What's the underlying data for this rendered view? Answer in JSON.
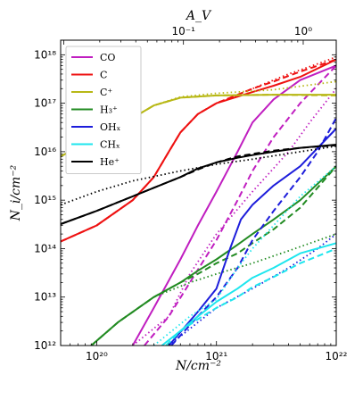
{
  "chart_data": {
    "type": "line",
    "xscale": "log",
    "yscale": "log",
    "xlim": [
      5e+19,
      1e+22
    ],
    "ylim": [
      1000000000000.0,
      2e+18
    ],
    "xlabel": "N/cm⁻²",
    "ylabel": "N_i/cm⁻²",
    "top_axis": {
      "label": "A_V",
      "ticks": [
        {
          "text": "10⁻¹",
          "x": 5.3e+20
        },
        {
          "text": "10⁰",
          "x": 5.3e+21
        }
      ]
    },
    "x_ticks": [
      {
        "text": "10²⁰",
        "v": 1e+20
      },
      {
        "text": "10²¹",
        "v": 1e+21
      },
      {
        "text": "10²²",
        "v": 1e+22
      }
    ],
    "y_ticks": [
      {
        "text": "10¹²",
        "v": 1000000000000.0
      },
      {
        "text": "10¹³",
        "v": 10000000000000.0
      },
      {
        "text": "10¹⁴",
        "v": 100000000000000.0
      },
      {
        "text": "10¹⁵",
        "v": 1000000000000000.0
      },
      {
        "text": "10¹⁶",
        "v": 1e+16
      },
      {
        "text": "10¹⁷",
        "v": 1e+17
      },
      {
        "text": "10¹⁸",
        "v": 1e+18
      }
    ],
    "legend_position": "upper-left",
    "series": [
      {
        "name": "CO",
        "color": "#c01ec0",
        "solid": [
          [
            2e+20,
            1000000000000.0
          ],
          [
            3e+20,
            6000000000000.0
          ],
          [
            5e+20,
            60000000000000.0
          ],
          [
            7e+20,
            300000000000000.0
          ],
          [
            1e+21,
            1500000000000000.0
          ],
          [
            1.5e+21,
            1e+16
          ],
          [
            2e+21,
            4e+16
          ],
          [
            3e+21,
            1.2e+17
          ],
          [
            5e+21,
            3e+17
          ],
          [
            1e+22,
            6e+17
          ]
        ],
        "dashed": [
          [
            2.5e+20,
            1000000000000.0
          ],
          [
            4e+20,
            4000000000000.0
          ],
          [
            6e+20,
            20000000000000.0
          ],
          [
            1e+21,
            150000000000000.0
          ],
          [
            1.5e+21,
            1000000000000000.0
          ],
          [
            2e+21,
            4000000000000000.0
          ],
          [
            3e+21,
            2e+16
          ],
          [
            5e+21,
            1e+17
          ],
          [
            1e+22,
            6e+17
          ]
        ],
        "dotted": [
          [
            2e+20,
            1000000000000.0
          ],
          [
            4e+20,
            4000000000000.0
          ],
          [
            6e+20,
            30000000000000.0
          ],
          [
            1e+21,
            200000000000000.0
          ],
          [
            2e+21,
            1500000000000000.0
          ],
          [
            4e+21,
            1e+16
          ],
          [
            6e+21,
            4e+16
          ],
          [
            1e+22,
            2e+17
          ]
        ]
      },
      {
        "name": "C",
        "color": "#ee1111",
        "solid": [
          [
            5e+19,
            140000000000000.0
          ],
          [
            1e+20,
            300000000000000.0
          ],
          [
            2e+20,
            1000000000000000.0
          ],
          [
            3e+20,
            3000000000000000.0
          ],
          [
            4e+20,
            1e+16
          ],
          [
            5e+20,
            2.5e+16
          ],
          [
            7e+20,
            6e+16
          ],
          [
            1e+21,
            1e+17
          ],
          [
            2e+21,
            1.7e+17
          ],
          [
            3e+21,
            2.3e+17
          ],
          [
            5e+21,
            3.5e+17
          ],
          [
            1e+22,
            8e+17
          ]
        ],
        "dashed": [
          [
            5e+19,
            140000000000000.0
          ],
          [
            1e+20,
            300000000000000.0
          ],
          [
            2e+20,
            1000000000000000.0
          ],
          [
            3e+20,
            3000000000000000.0
          ],
          [
            4e+20,
            1e+16
          ],
          [
            5e+20,
            2.5e+16
          ],
          [
            7e+20,
            6e+16
          ],
          [
            1e+21,
            1e+17
          ],
          [
            2e+21,
            2e+17
          ],
          [
            3e+21,
            2.8e+17
          ],
          [
            5e+21,
            4.5e+17
          ],
          [
            1e+22,
            8e+17
          ]
        ],
        "dotted": [
          [
            5e+19,
            140000000000000.0
          ],
          [
            1e+20,
            300000000000000.0
          ],
          [
            2e+20,
            1000000000000000.0
          ],
          [
            3e+20,
            3000000000000000.0
          ],
          [
            4e+20,
            1e+16
          ],
          [
            5e+20,
            2.5e+16
          ],
          [
            7e+20,
            6e+16
          ],
          [
            1e+21,
            1e+17
          ],
          [
            2e+21,
            2e+17
          ],
          [
            4e+21,
            4e+17
          ],
          [
            7e+21,
            6.5e+17
          ],
          [
            1e+22,
            9e+17
          ]
        ]
      },
      {
        "name": "C⁺",
        "color": "#b8b816",
        "solid": [
          [
            5e+19,
            8000000000000000.0
          ],
          [
            1e+20,
            2e+16
          ],
          [
            2e+20,
            5e+16
          ],
          [
            3e+20,
            9e+16
          ],
          [
            5e+20,
            1.3e+17
          ],
          [
            1e+21,
            1.45e+17
          ],
          [
            3e+21,
            1.5e+17
          ],
          [
            1e+22,
            1.5e+17
          ]
        ],
        "dashed": [
          [
            5e+19,
            8000000000000000.0
          ],
          [
            1e+20,
            2e+16
          ],
          [
            2e+20,
            5e+16
          ],
          [
            3e+20,
            9e+16
          ],
          [
            5e+20,
            1.3e+17
          ],
          [
            1e+21,
            1.45e+17
          ],
          [
            3e+21,
            1.5e+17
          ],
          [
            1e+22,
            1.45e+17
          ]
        ],
        "dotted": [
          [
            5e+19,
            8000000000000000.0
          ],
          [
            1e+20,
            2e+16
          ],
          [
            2e+20,
            5e+16
          ],
          [
            3e+20,
            9e+16
          ],
          [
            5e+20,
            1.35e+17
          ],
          [
            1e+21,
            1.6e+17
          ],
          [
            3e+21,
            1.9e+17
          ],
          [
            1e+22,
            2.8e+17
          ]
        ]
      },
      {
        "name": "H₃⁺",
        "color": "#228b22",
        "solid": [
          [
            9e+19,
            1000000000000.0
          ],
          [
            1.5e+20,
            3000000000000.0
          ],
          [
            3e+20,
            10000000000000.0
          ],
          [
            5e+20,
            20000000000000.0
          ],
          [
            7e+20,
            35000000000000.0
          ],
          [
            1e+21,
            60000000000000.0
          ],
          [
            1.5e+21,
            120000000000000.0
          ],
          [
            2e+21,
            200000000000000.0
          ],
          [
            3e+21,
            400000000000000.0
          ],
          [
            5e+21,
            1000000000000000.0
          ],
          [
            1e+22,
            5000000000000000.0
          ]
        ],
        "dashed": [
          [
            9e+19,
            1000000000000.0
          ],
          [
            1.5e+20,
            3000000000000.0
          ],
          [
            3e+20,
            10000000000000.0
          ],
          [
            5e+20,
            20000000000000.0
          ],
          [
            7e+20,
            30000000000000.0
          ],
          [
            1e+21,
            50000000000000.0
          ],
          [
            1.5e+21,
            80000000000000.0
          ],
          [
            2e+21,
            130000000000000.0
          ],
          [
            3e+21,
            250000000000000.0
          ],
          [
            5e+21,
            700000000000000.0
          ],
          [
            1e+22,
            5000000000000000.0
          ]
        ],
        "dotted": [
          [
            9e+19,
            1000000000000.0
          ],
          [
            1.5e+20,
            3000000000000.0
          ],
          [
            3e+20,
            10000000000000.0
          ],
          [
            6e+20,
            20000000000000.0
          ],
          [
            1e+21,
            30000000000000.0
          ],
          [
            2e+21,
            50000000000000.0
          ],
          [
            4e+21,
            90000000000000.0
          ],
          [
            1e+22,
            200000000000000.0
          ]
        ]
      },
      {
        "name": "OHₓ",
        "color": "#1d1ddb",
        "solid": [
          [
            4e+20,
            1000000000000.0
          ],
          [
            7e+20,
            5000000000000.0
          ],
          [
            1e+21,
            15000000000000.0
          ],
          [
            1.3e+21,
            100000000000000.0
          ],
          [
            1.6e+21,
            400000000000000.0
          ],
          [
            2e+21,
            800000000000000.0
          ],
          [
            3e+21,
            2000000000000000.0
          ],
          [
            5e+21,
            5000000000000000.0
          ],
          [
            1e+22,
            3e+16
          ]
        ],
        "dashed": [
          [
            4.2e+20,
            1000000000000.0
          ],
          [
            7e+20,
            4000000000000.0
          ],
          [
            1e+21,
            10000000000000.0
          ],
          [
            1.5e+21,
            40000000000000.0
          ],
          [
            2e+21,
            150000000000000.0
          ],
          [
            3e+21,
            600000000000000.0
          ],
          [
            5e+21,
            3000000000000000.0
          ],
          [
            7e+21,
            1e+16
          ],
          [
            1e+22,
            5e+16
          ]
        ],
        "dotted": [
          [
            4e+20,
            1000000000000.0
          ],
          [
            7e+20,
            3000000000000.0
          ],
          [
            1e+21,
            6000000000000.0
          ],
          [
            2e+21,
            15000000000000.0
          ],
          [
            4e+21,
            40000000000000.0
          ],
          [
            7e+21,
            100000000000000.0
          ],
          [
            1e+22,
            200000000000000.0
          ]
        ]
      },
      {
        "name": "CHₓ",
        "color": "#1ee6ee",
        "solid": [
          [
            3.5e+20,
            1000000000000.0
          ],
          [
            5e+20,
            2000000000000.0
          ],
          [
            7e+20,
            4000000000000.0
          ],
          [
            1e+21,
            8000000000000.0
          ],
          [
            1.5e+21,
            15000000000000.0
          ],
          [
            2e+21,
            25000000000000.0
          ],
          [
            3e+21,
            40000000000000.0
          ],
          [
            5e+21,
            80000000000000.0
          ],
          [
            1e+22,
            130000000000000.0
          ]
        ],
        "dashed": [
          [
            3.8e+20,
            1000000000000.0
          ],
          [
            5e+20,
            2000000000000.0
          ],
          [
            7e+20,
            3500000000000.0
          ],
          [
            1e+21,
            6000000000000.0
          ],
          [
            1.5e+21,
            10000000000000.0
          ],
          [
            2e+21,
            16000000000000.0
          ],
          [
            3e+21,
            26000000000000.0
          ],
          [
            5e+21,
            50000000000000.0
          ],
          [
            1e+22,
            100000000000000.0
          ]
        ],
        "dotted": [
          [
            3e+20,
            1000000000000.0
          ],
          [
            6e+20,
            4000000000000.0
          ],
          [
            1e+21,
            9000000000000.0
          ],
          [
            1.5e+21,
            40000000000000.0
          ],
          [
            2e+21,
            100000000000000.0
          ],
          [
            3e+21,
            300000000000000.0
          ],
          [
            5e+21,
            1200000000000000.0
          ],
          [
            1e+22,
            5000000000000000.0
          ]
        ]
      },
      {
        "name": "He⁺",
        "color": "#000000",
        "solid": [
          [
            5e+19,
            320000000000000.0
          ],
          [
            1e+20,
            600000000000000.0
          ],
          [
            2e+20,
            1200000000000000.0
          ],
          [
            3e+20,
            1800000000000000.0
          ],
          [
            5e+20,
            3000000000000000.0
          ],
          [
            7e+20,
            4500000000000000.0
          ],
          [
            1e+21,
            6000000000000000.0
          ],
          [
            1.5e+21,
            7500000000000000.0
          ],
          [
            2e+21,
            8500000000000000.0
          ],
          [
            3e+21,
            1e+16
          ],
          [
            5e+21,
            1.2e+16
          ],
          [
            1e+22,
            1.4e+16
          ]
        ],
        "dashed": [
          [
            5e+19,
            320000000000000.0
          ],
          [
            1e+20,
            600000000000000.0
          ],
          [
            2e+20,
            1200000000000000.0
          ],
          [
            3e+20,
            1800000000000000.0
          ],
          [
            5e+20,
            3000000000000000.0
          ],
          [
            7e+20,
            4300000000000000.0
          ],
          [
            1e+21,
            6000000000000000.0
          ],
          [
            1.5e+21,
            8000000000000000.0
          ],
          [
            2e+21,
            9000000000000000.0
          ],
          [
            3e+21,
            1.05e+16
          ],
          [
            5e+21,
            1.2e+16
          ],
          [
            1e+22,
            1.35e+16
          ]
        ],
        "dotted": [
          [
            5e+19,
            800000000000000.0
          ],
          [
            1e+20,
            1500000000000000.0
          ],
          [
            2e+20,
            2500000000000000.0
          ],
          [
            5e+20,
            4000000000000000.0
          ],
          [
            1e+21,
            5500000000000000.0
          ],
          [
            2e+21,
            7000000000000000.0
          ],
          [
            5e+21,
            1e+16
          ],
          [
            1e+22,
            1.3e+16
          ]
        ]
      }
    ]
  }
}
